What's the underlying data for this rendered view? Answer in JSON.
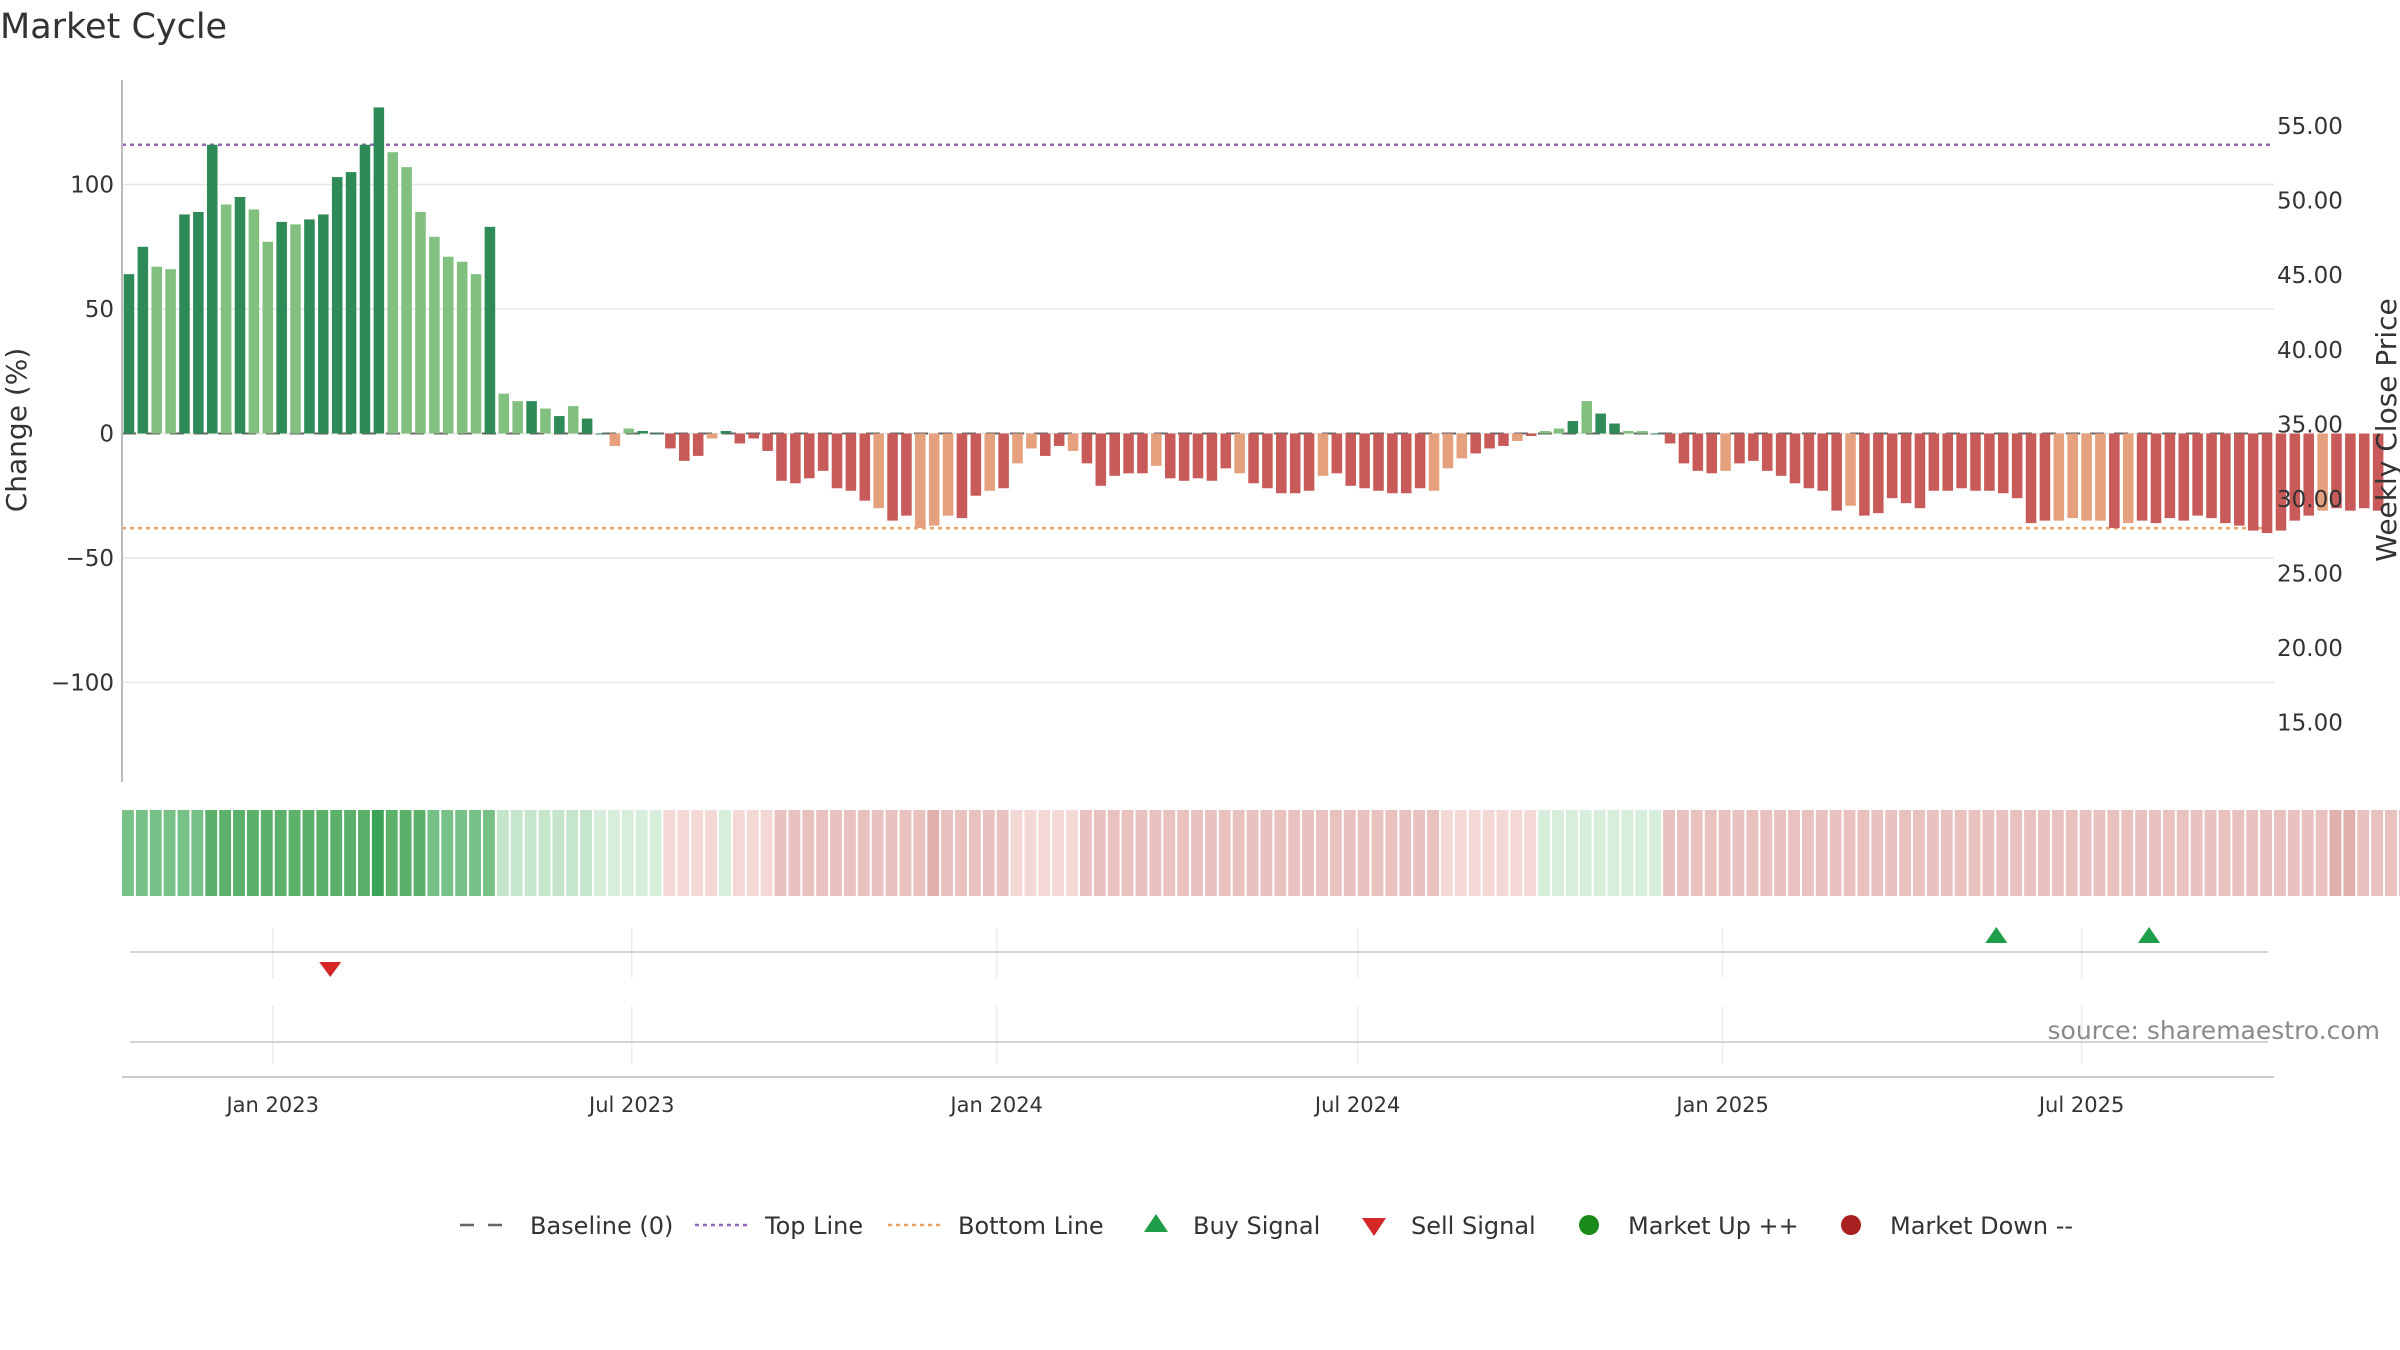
{
  "chart_data": {
    "type": "bar",
    "title": "Market Cycle",
    "ylabel_left": "Change (%)",
    "ylabel_right": "Weekly Close Price",
    "left_axis": {
      "ylim": [
        -140,
        142
      ],
      "ticks": [
        100,
        50,
        0,
        -50,
        -100
      ]
    },
    "right_axis": {
      "ylim": [
        11.0,
        58.1
      ],
      "ticks": [
        "55.00",
        "50.00",
        "45.00",
        "40.00",
        "35.00",
        "30.00",
        "25.00",
        "20.00",
        "15.00"
      ]
    },
    "x_axis": {
      "start": "2022-10-17",
      "end": "2025-10-06",
      "ticks": [
        {
          "date": "2023-01-01",
          "label": "Jan 2023"
        },
        {
          "date": "2023-07-01",
          "label": "Jul 2023"
        },
        {
          "date": "2024-01-01",
          "label": "Jan 2024"
        },
        {
          "date": "2024-07-01",
          "label": "Jul 2024"
        },
        {
          "date": "2025-01-01",
          "label": "Jan 2025"
        },
        {
          "date": "2025-07-01",
          "label": "Jul 2025"
        }
      ]
    },
    "top_line": 116,
    "bottom_line": -38,
    "baseline": 0,
    "first_week": "2022-10-17",
    "change_values": [
      64,
      75,
      67,
      66,
      88,
      89,
      116,
      92,
      95,
      90,
      77,
      85,
      84,
      86,
      88,
      103,
      105,
      116,
      131,
      113,
      107,
      89,
      79,
      71,
      69,
      64,
      83,
      16,
      13,
      13,
      10,
      7,
      11,
      6,
      0,
      -5,
      2,
      1,
      0,
      -6,
      -11,
      -9,
      -2,
      1,
      -4,
      -2,
      -7,
      -19,
      -20,
      -18,
      -15,
      -22,
      -23,
      -27,
      -30,
      -35,
      -33,
      -38,
      -37,
      -33,
      -34,
      -25,
      -23,
      -22,
      -12,
      -6,
      -9,
      -5,
      -7,
      -12,
      -21,
      -17,
      -16,
      -16,
      -13,
      -18,
      -19,
      -18,
      -19,
      -14,
      -16,
      -20,
      -22,
      -24,
      -24,
      -23,
      -17,
      -16,
      -21,
      -22,
      -23,
      -24,
      -24,
      -22,
      -23,
      -14,
      -10,
      -8,
      -6,
      -5,
      -3,
      -1,
      1,
      2,
      5,
      13,
      8,
      4,
      1,
      1,
      0,
      -4,
      -12,
      -15,
      -16,
      -15,
      -12,
      -11,
      -15,
      -17,
      -20,
      -22,
      -23,
      -31,
      -29,
      -33,
      -32,
      -26,
      -28,
      -30,
      -23,
      -23,
      -22,
      -23,
      -23,
      -24,
      -26,
      -36,
      -35,
      -35,
      -34,
      -35,
      -35,
      -38,
      -36,
      -35,
      -36,
      -34,
      -35,
      -33,
      -34,
      -36,
      -37,
      -39,
      -40,
      -39,
      -35,
      -33,
      -31,
      -30,
      -31,
      -30,
      -31
    ],
    "bar_colors": {
      "strong_up": "#2e8b57",
      "weak_up": "#82c080",
      "strong_down": "#c85a5a",
      "weak_down": "#e5a07d"
    },
    "bar_shades": "SSWWSSSWSWWSWSSSSSSWWWWWWWSWWSWSWDDWWDDDDDWDDDDDDDDDDDWDDWWWDDWDWWDDWDDDDDWDDDDDWDDDDDWDDDDDDDWWWDDDWSWWSWSSWWSDDDDWDDDDDDDDWDDDDDDDDDDDDDDWWWWDWDDDDDDDDDDDDDWDDDDWW",
    "regime_strip": [
      3,
      3,
      3,
      3,
      3,
      3,
      4,
      4,
      4,
      4,
      4,
      4,
      4,
      4,
      4,
      4,
      4,
      4,
      5,
      4,
      4,
      4,
      3,
      3,
      3,
      3,
      3,
      2,
      2,
      2,
      2,
      2,
      2,
      2,
      1,
      1,
      1,
      1,
      1,
      -1,
      -1,
      -1,
      -1,
      1,
      -1,
      -1,
      -1,
      -2,
      -2,
      -2,
      -2,
      -2,
      -2,
      -2,
      -2,
      -2,
      -2,
      -2,
      -3,
      -2,
      -2,
      -2,
      -2,
      -2,
      -1,
      -1,
      -1,
      -1,
      -1,
      -2,
      -2,
      -2,
      -2,
      -2,
      -2,
      -2,
      -2,
      -2,
      -2,
      -2,
      -2,
      -2,
      -2,
      -2,
      -2,
      -2,
      -2,
      -2,
      -2,
      -2,
      -2,
      -2,
      -2,
      -2,
      -2,
      -1,
      -1,
      -1,
      -1,
      -1,
      -1,
      -1,
      1,
      1,
      1,
      1,
      1,
      1,
      1,
      1,
      1,
      -2,
      -2,
      -2,
      -2,
      -2,
      -2,
      -2,
      -2,
      -2,
      -2,
      -2,
      -2,
      -2,
      -2,
      -2,
      -2,
      -2,
      -2,
      -2,
      -2,
      -2,
      -2,
      -2,
      -2,
      -2,
      -2,
      -2,
      -2,
      -2,
      -2,
      -2,
      -2,
      -2,
      -2,
      -2,
      -2,
      -2,
      -2,
      -2,
      -2,
      -2,
      -2,
      -2,
      -2,
      -2,
      -2,
      -2,
      -2,
      -3,
      -3,
      -2,
      -2,
      -2,
      -2,
      -2,
      -2,
      -2
    ],
    "buy_signals": [
      "2025-05-19",
      "2025-08-04"
    ],
    "sell_signals": [
      "2023-01-30"
    ],
    "market_up_markers": [],
    "market_down_markers": [],
    "legend": {
      "position": "bottom-center",
      "items": [
        {
          "label": "Baseline (0)",
          "kind": "dashline",
          "color": "#666666"
        },
        {
          "label": "Top Line",
          "kind": "dotline",
          "color": "#9467bd"
        },
        {
          "label": "Bottom Line",
          "kind": "dotline",
          "color": "#f0a060"
        },
        {
          "label": "Buy Signal",
          "kind": "tri-up",
          "color": "#1e9e48"
        },
        {
          "label": "Sell Signal",
          "kind": "tri-down",
          "color": "#d62728"
        },
        {
          "label": "Market Up ++",
          "kind": "dot",
          "color": "#1a8a1a"
        },
        {
          "label": "Market Down --",
          "kind": "dot",
          "color": "#a82020"
        }
      ]
    },
    "grid": true,
    "colors": {
      "top_line": "#9467bd",
      "bottom_line": "#f0a060",
      "baseline": "#666666",
      "grid": "#e6e6e6"
    },
    "source": "source: sharemaestro.com"
  }
}
